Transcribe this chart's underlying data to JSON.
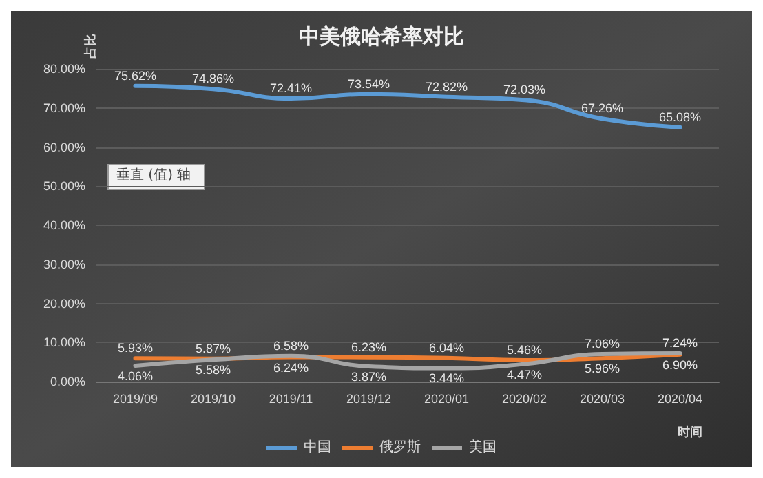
{
  "chart_data": {
    "type": "line",
    "title": "中美俄哈希率对比",
    "xlabel": "时间",
    "ylabel": "占比",
    "categories": [
      "2019/09",
      "2019/10",
      "2019/11",
      "2019/12",
      "2020/01",
      "2020/02",
      "2020/03",
      "2020/04"
    ],
    "series": [
      {
        "name": "中国",
        "color": "#5b9bd5",
        "values": [
          75.62,
          74.86,
          72.41,
          73.54,
          72.82,
          72.03,
          67.26,
          65.08
        ],
        "value_labels": [
          "75.62%",
          "74.86%",
          "72.41%",
          "73.54%",
          "72.82%",
          "72.03%",
          "67.26%",
          "65.08%"
        ]
      },
      {
        "name": "俄罗斯",
        "color": "#ed7d31",
        "values": [
          5.93,
          5.87,
          6.24,
          6.23,
          6.04,
          5.46,
          5.96,
          6.9
        ],
        "value_labels": [
          "5.93%",
          "5.87%",
          "6.24%",
          "6.23%",
          "6.04%",
          "5.46%",
          "5.96%",
          "6.90%"
        ]
      },
      {
        "name": "美国",
        "color": "#a5a5a5",
        "values": [
          4.06,
          5.58,
          6.58,
          3.87,
          3.44,
          4.47,
          7.06,
          7.24
        ],
        "value_labels": [
          "4.06%",
          "5.58%",
          "6.58%",
          "3.87%",
          "3.44%",
          "4.47%",
          "7.06%",
          "7.24%"
        ]
      }
    ],
    "ylim": [
      0,
      80
    ],
    "yticks": [
      {
        "value": 0,
        "label": "0.00%"
      },
      {
        "value": 10,
        "label": "10.00%"
      },
      {
        "value": 20,
        "label": "20.00%"
      },
      {
        "value": 30,
        "label": "30.00%"
      },
      {
        "value": 40,
        "label": "40.00%"
      },
      {
        "value": 50,
        "label": "50.00%"
      },
      {
        "value": 60,
        "label": "60.00%"
      },
      {
        "value": 70,
        "label": "70.00%"
      },
      {
        "value": 80,
        "label": "80.00%"
      }
    ],
    "grid": "y",
    "legend": "bottom",
    "marker": "none",
    "line_style": "solid",
    "annotations": [
      "垂直 (值) 轴"
    ]
  }
}
